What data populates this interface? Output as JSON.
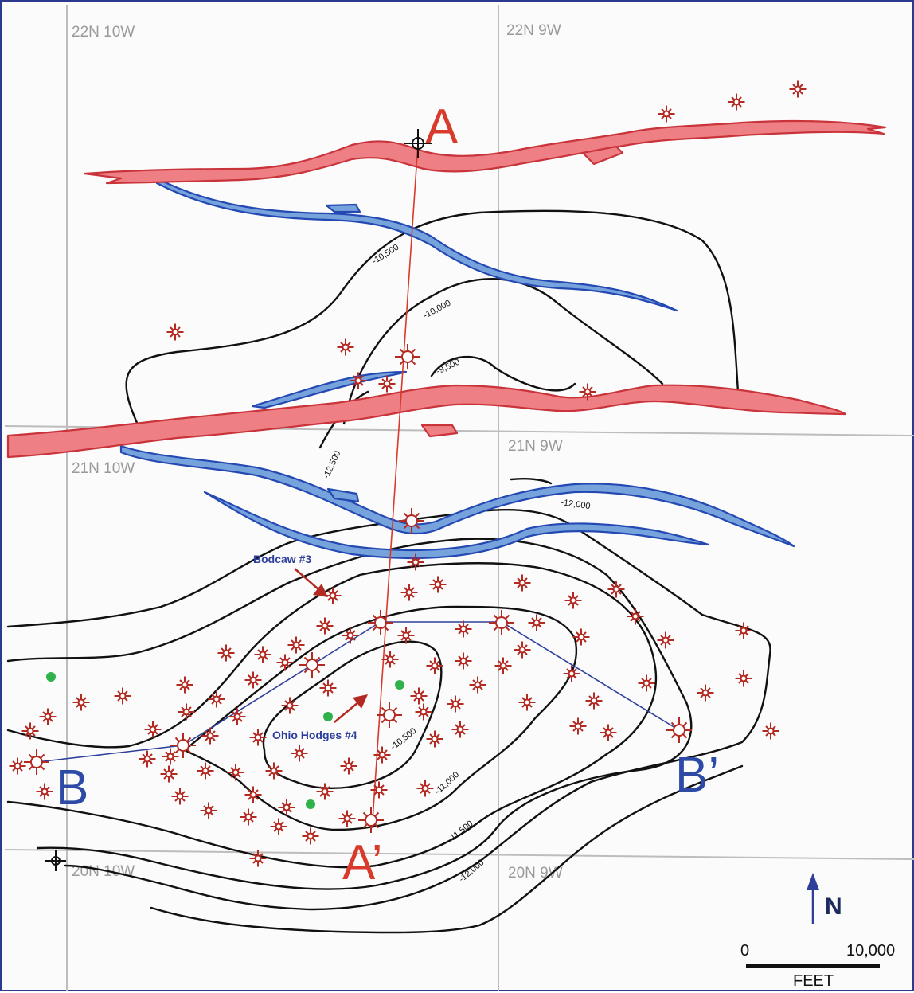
{
  "townships": [
    "22N 10W",
    "22N 9W",
    "21N 10W",
    "21N 9W",
    "20N 10W",
    "20N 9W"
  ],
  "contours": [
    "-10,500",
    "-10,000",
    "-9,500",
    "-12,500",
    "-12,000",
    "-10,500",
    "-11,000",
    "-11,500",
    "-12,000"
  ],
  "cross_sections": {
    "a_start": "A",
    "a_end": "A’",
    "b_start": "B",
    "b_end": "B’"
  },
  "wells": {
    "bodcaw": "Bodcaw #3",
    "ohio_hodges": "Ohio Hodges #4"
  },
  "north": "N",
  "scale": {
    "start": "0",
    "end": "10,000",
    "unit": "FEET"
  },
  "colors": {
    "fault_fill": "#ee7f84",
    "fault_stroke": "#c9343b",
    "river_fill": "#77a3dd",
    "river_stroke": "#2549b3",
    "well": "#b32a22",
    "section_line_a": "#d83a2c",
    "section_line_b": "#2d3f9a",
    "letter_a": "#d83a2c",
    "letter_b": "#2d4aa6",
    "green_dot": "#2fb24b",
    "grid": "#bdbdbd"
  },
  "symbols": {
    "well": "well-symbol-icon",
    "dry_hole": "dry-hole-icon",
    "green_dot": "green-dot-icon",
    "north_arrow": "north-arrow-icon"
  }
}
